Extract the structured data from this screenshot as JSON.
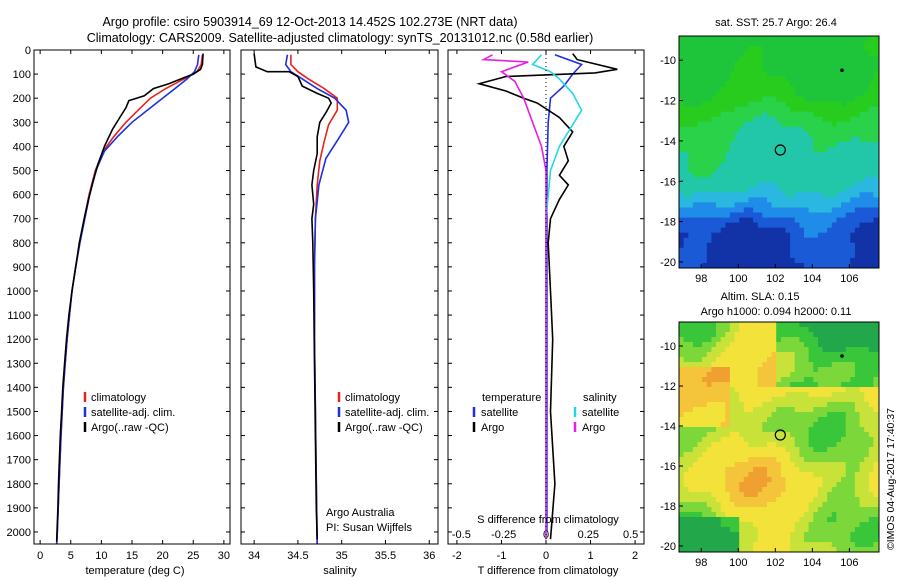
{
  "header": {
    "line1": "Argo profile: csiro 5903914_69 12-Oct-2013 14.452S 102.273E (NRT data)",
    "line2": "Climatology: CARS2009. Satellite-adjusted climatology: synTS_20131012.nc (0.58d earlier)"
  },
  "colors": {
    "climatology": "#e8231a",
    "satellite": "#1f2fe0",
    "argo": "#000000",
    "sal_satellite": "#22d8e8",
    "sal_argo": "#e81ee0",
    "sst_green": "#22c22a",
    "sla_yellow": "#f2e23a"
  },
  "chart_data": [
    {
      "type": "line",
      "name": "temperature-profile",
      "xlabel": "temperature (deg C)",
      "ylabel": "",
      "xlim": [
        -1,
        31
      ],
      "ylim": [
        2050,
        0
      ],
      "xticks": [
        0,
        5,
        10,
        15,
        20,
        25,
        30
      ],
      "yticks": [
        0,
        100,
        200,
        300,
        400,
        500,
        600,
        700,
        800,
        900,
        1000,
        1100,
        1200,
        1300,
        1400,
        1500,
        1600,
        1700,
        1800,
        1900,
        2000
      ],
      "legend": [
        "climatology",
        "satellite-adj. clim.",
        "Argo(..raw -QC)"
      ],
      "series": [
        {
          "name": "climatology",
          "color": "#e8231a",
          "points": [
            [
              26.5,
              20
            ],
            [
              26.3,
              60
            ],
            [
              25.6,
              90
            ],
            [
              23.5,
              120
            ],
            [
              20.5,
              160
            ],
            [
              18,
              200
            ],
            [
              16,
              250
            ],
            [
              14,
              300
            ],
            [
              12,
              360
            ],
            [
              10.3,
              420
            ],
            [
              9,
              500
            ],
            [
              8,
              600
            ],
            [
              7.2,
              700
            ],
            [
              6.5,
              800
            ],
            [
              5.8,
              900
            ],
            [
              5.2,
              1000
            ],
            [
              4.8,
              1100
            ],
            [
              4.4,
              1200
            ],
            [
              4.1,
              1300
            ],
            [
              3.8,
              1400
            ],
            [
              3.6,
              1500
            ],
            [
              3.4,
              1600
            ],
            [
              3.25,
              1700
            ],
            [
              3.1,
              1800
            ],
            [
              2.95,
              1900
            ],
            [
              2.8,
              2000
            ],
            [
              2.7,
              2050
            ]
          ]
        },
        {
          "name": "satellite-adj. clim.",
          "color": "#1f2fe0",
          "points": [
            [
              25.9,
              20
            ],
            [
              25.7,
              60
            ],
            [
              25.2,
              90
            ],
            [
              24,
              120
            ],
            [
              22,
              160
            ],
            [
              20,
              200
            ],
            [
              17.5,
              250
            ],
            [
              15,
              300
            ],
            [
              12.6,
              360
            ],
            [
              10.5,
              420
            ],
            [
              9.1,
              500
            ],
            [
              8.1,
              600
            ],
            [
              7.3,
              700
            ],
            [
              6.5,
              800
            ],
            [
              5.8,
              900
            ],
            [
              5.2,
              1000
            ],
            [
              4.8,
              1100
            ],
            [
              4.4,
              1200
            ],
            [
              4.1,
              1300
            ],
            [
              3.8,
              1400
            ],
            [
              3.6,
              1500
            ],
            [
              3.4,
              1600
            ],
            [
              3.25,
              1700
            ],
            [
              3.1,
              1800
            ],
            [
              2.95,
              1900
            ],
            [
              2.8,
              2000
            ],
            [
              2.7,
              2050
            ]
          ]
        },
        {
          "name": "Argo(..raw -QC)",
          "color": "#000000",
          "points": [
            [
              26.6,
              15
            ],
            [
              26.5,
              60
            ],
            [
              26.2,
              80
            ],
            [
              25,
              100
            ],
            [
              23,
              120
            ],
            [
              21,
              140
            ],
            [
              18.5,
              160
            ],
            [
              17,
              190
            ],
            [
              14.5,
              210
            ],
            [
              14,
              240
            ],
            [
              13,
              280
            ],
            [
              11.8,
              330
            ],
            [
              10.5,
              400
            ],
            [
              9.5,
              470
            ],
            [
              8.6,
              550
            ],
            [
              7.9,
              620
            ],
            [
              7.2,
              700
            ],
            [
              6.4,
              800
            ],
            [
              5.8,
              900
            ],
            [
              5.2,
              1000
            ],
            [
              4.7,
              1100
            ],
            [
              4.3,
              1200
            ],
            [
              4,
              1300
            ],
            [
              3.7,
              1400
            ],
            [
              3.5,
              1500
            ],
            [
              3.3,
              1600
            ],
            [
              3.15,
              1700
            ],
            [
              3.0,
              1800
            ],
            [
              2.9,
              1900
            ],
            [
              2.75,
              2000
            ],
            [
              2.7,
              2040
            ]
          ]
        }
      ]
    },
    {
      "type": "line",
      "name": "salinity-profile",
      "xlabel": "salinity",
      "xlim": [
        33.85,
        36.1
      ],
      "ylim": [
        2050,
        0
      ],
      "xticks": [
        34,
        34.5,
        35,
        35.5,
        36
      ],
      "legend": [
        "climatology",
        "satellite-adj. clim.",
        "Argo(..raw -QC)"
      ],
      "annotation": [
        "Argo Australia",
        "PI: Susan Wijffels"
      ],
      "series": [
        {
          "name": "climatology",
          "color": "#e8231a",
          "points": [
            [
              34.42,
              20
            ],
            [
              34.42,
              60
            ],
            [
              34.5,
              90
            ],
            [
              34.62,
              120
            ],
            [
              34.8,
              160
            ],
            [
              34.95,
              200
            ],
            [
              34.95,
              250
            ],
            [
              34.85,
              310
            ],
            [
              34.8,
              380
            ],
            [
              34.75,
              460
            ],
            [
              34.72,
              560
            ],
            [
              34.7,
              700
            ],
            [
              34.69,
              900
            ],
            [
              34.69,
              1200
            ],
            [
              34.7,
              1500
            ],
            [
              34.71,
              1800
            ],
            [
              34.72,
              2050
            ]
          ]
        },
        {
          "name": "satellite-adj. clim.",
          "color": "#1f2fe0",
          "points": [
            [
              34.38,
              20
            ],
            [
              34.36,
              60
            ],
            [
              34.42,
              90
            ],
            [
              34.55,
              120
            ],
            [
              34.72,
              160
            ],
            [
              34.92,
              200
            ],
            [
              35.05,
              250
            ],
            [
              35.08,
              300
            ],
            [
              34.96,
              370
            ],
            [
              34.82,
              450
            ],
            [
              34.74,
              560
            ],
            [
              34.7,
              700
            ],
            [
              34.69,
              900
            ],
            [
              34.69,
              1200
            ],
            [
              34.7,
              1500
            ],
            [
              34.71,
              1800
            ],
            [
              34.72,
              2050
            ]
          ]
        },
        {
          "name": "Argo(..raw -QC)",
          "color": "#000000",
          "points": [
            [
              34.0,
              15
            ],
            [
              34.02,
              70
            ],
            [
              34.15,
              90
            ],
            [
              34.4,
              90
            ],
            [
              34.5,
              110
            ],
            [
              34.55,
              150
            ],
            [
              34.72,
              180
            ],
            [
              34.85,
              200
            ],
            [
              34.88,
              220
            ],
            [
              34.82,
              260
            ],
            [
              34.75,
              300
            ],
            [
              34.72,
              360
            ],
            [
              34.72,
              430
            ],
            [
              34.68,
              500
            ],
            [
              34.66,
              560
            ],
            [
              34.68,
              640
            ],
            [
              34.66,
              700
            ],
            [
              34.67,
              800
            ],
            [
              34.68,
              1000
            ],
            [
              34.69,
              1300
            ],
            [
              34.7,
              1600
            ],
            [
              34.71,
              1900
            ],
            [
              34.72,
              2030
            ]
          ]
        }
      ]
    },
    {
      "type": "line",
      "name": "difference-profile",
      "xlabel": "T difference from climatology",
      "xlabel_top": "S difference from climatology",
      "xlim": [
        -2.2,
        2.2
      ],
      "ylim": [
        2050,
        0
      ],
      "xticks": [
        -2,
        -1,
        0,
        1,
        2
      ],
      "top_ticks": [
        "-0.5",
        "-0.25",
        "0",
        "0.25",
        "0.5"
      ],
      "legend_temperature": [
        "temperature",
        "satellite",
        "Argo"
      ],
      "legend_salinity": [
        "salinity",
        "satellite",
        "Argo"
      ],
      "series": [
        {
          "name": "T satellite",
          "color": "#1f2fe0",
          "points": [
            [
              0.2,
              20
            ],
            [
              0.8,
              60
            ],
            [
              0.6,
              100
            ],
            [
              0.4,
              150
            ],
            [
              0.1,
              200
            ],
            [
              0.05,
              300
            ],
            [
              0.02,
              500
            ],
            [
              0.02,
              1000
            ],
            [
              0.02,
              2000
            ]
          ]
        },
        {
          "name": "T Argo",
          "color": "#000000",
          "points": [
            [
              0.6,
              15
            ],
            [
              0.7,
              40
            ],
            [
              1.6,
              80
            ],
            [
              1.1,
              95
            ],
            [
              -0.9,
              110
            ],
            [
              -1.5,
              140
            ],
            [
              -0.9,
              170
            ],
            [
              -0.5,
              200
            ],
            [
              -0.2,
              220
            ],
            [
              0.3,
              280
            ],
            [
              0.6,
              340
            ],
            [
              0.4,
              400
            ],
            [
              0.5,
              460
            ],
            [
              0.3,
              520
            ],
            [
              0.5,
              560
            ],
            [
              0.3,
              620
            ],
            [
              0.1,
              700
            ],
            [
              0.05,
              800
            ],
            [
              0.1,
              1000
            ],
            [
              0.15,
              1200
            ],
            [
              0.1,
              1500
            ],
            [
              0.2,
              1800
            ],
            [
              0.1,
              2030
            ]
          ]
        },
        {
          "name": "S satellite",
          "color": "#22d8e8",
          "points": [
            [
              -0.1,
              20
            ],
            [
              -0.3,
              60
            ],
            [
              0.1,
              90
            ],
            [
              0.3,
              120
            ],
            [
              0.6,
              180
            ],
            [
              0.8,
              250
            ],
            [
              0.3,
              400
            ],
            [
              0.1,
              500
            ],
            [
              0.0,
              700
            ],
            [
              0.0,
              1000
            ],
            [
              0.0,
              1500
            ],
            [
              0.0,
              2030
            ]
          ]
        },
        {
          "name": "S Argo",
          "color": "#e81ee0",
          "points": [
            [
              -1.2,
              20
            ],
            [
              -1.4,
              40
            ],
            [
              -0.4,
              50
            ],
            [
              -1.0,
              90
            ],
            [
              -0.7,
              130
            ],
            [
              -0.5,
              200
            ],
            [
              -0.3,
              300
            ],
            [
              -0.1,
              400
            ],
            [
              0.0,
              500
            ],
            [
              0.0,
              700
            ],
            [
              0.0,
              1000
            ],
            [
              0.0,
              1500
            ],
            [
              0.0,
              2030
            ]
          ]
        }
      ]
    },
    {
      "type": "heatmap",
      "name": "sst-map",
      "title": "sat. SST: 25.7  Argo: 26.4",
      "xticks": [
        98,
        100,
        102,
        104,
        106
      ],
      "yticks": [
        -10,
        -12,
        -14,
        -16,
        -18,
        -20
      ],
      "xlim": [
        96.8,
        107.6
      ],
      "ylim": [
        -20.3,
        -8.8
      ],
      "float_position": [
        102.27,
        -14.45
      ]
    },
    {
      "type": "heatmap",
      "name": "sla-map",
      "title_lines": [
        "Altim. SLA: 0.15",
        "Argo h1000: 0.094 h2000: 0.11"
      ],
      "xticks": [
        98,
        100,
        102,
        104,
        106
      ],
      "yticks": [
        -10,
        -12,
        -14,
        -16,
        -18,
        -20
      ],
      "xlim": [
        96.8,
        107.6
      ],
      "ylim": [
        -20.3,
        -8.8
      ],
      "float_position": [
        102.27,
        -14.45
      ]
    }
  ],
  "side_stamp": "©IMOS 04-Aug-2017 17:40:37"
}
